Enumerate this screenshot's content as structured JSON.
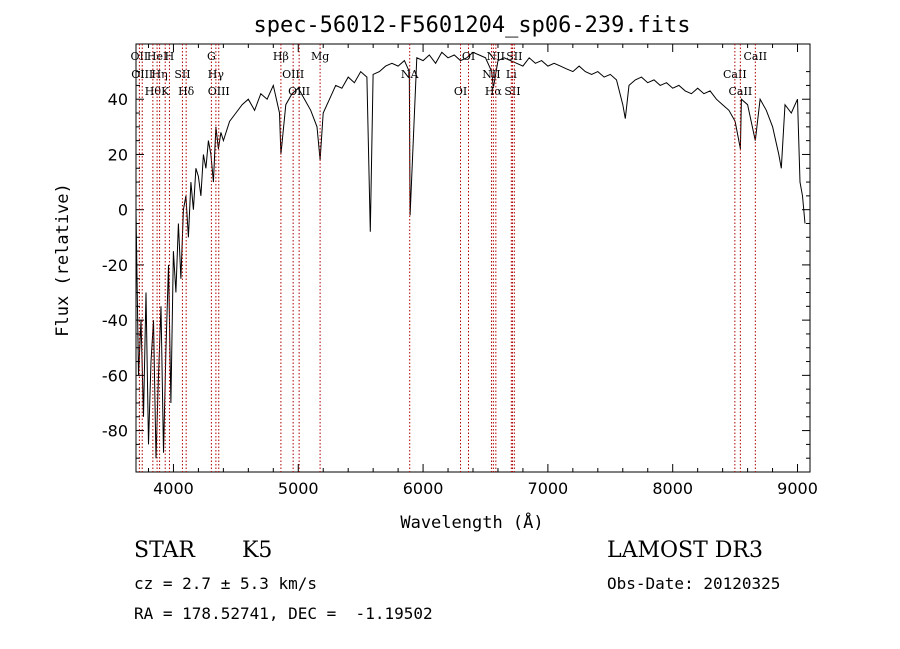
{
  "chart_data": {
    "type": "line",
    "title": "spec-56012-F5601204_sp06-239.fits",
    "xlabel": "Wavelength (Å)",
    "ylabel": "Flux (relative)",
    "xlim": [
      3700,
      9100
    ],
    "ylim": [
      -95,
      60
    ],
    "xticks": [
      4000,
      5000,
      6000,
      7000,
      8000,
      9000
    ],
    "yticks": [
      -80,
      -60,
      -40,
      -20,
      0,
      20,
      40
    ],
    "grid": false,
    "series": [
      {
        "color": "#000000",
        "x": [
          3700,
          3720,
          3740,
          3760,
          3780,
          3800,
          3820,
          3840,
          3860,
          3880,
          3900,
          3920,
          3940,
          3960,
          3980,
          4000,
          4020,
          4040,
          4060,
          4080,
          4100,
          4120,
          4140,
          4160,
          4180,
          4200,
          4220,
          4240,
          4260,
          4280,
          4300,
          4320,
          4340,
          4360,
          4380,
          4400,
          4450,
          4500,
          4550,
          4600,
          4650,
          4700,
          4750,
          4800,
          4850,
          4861,
          4900,
          4950,
          5000,
          5050,
          5100,
          5150,
          5175,
          5200,
          5250,
          5300,
          5350,
          5400,
          5450,
          5500,
          5550,
          5577,
          5600,
          5650,
          5700,
          5750,
          5800,
          5850,
          5890,
          5896,
          5950,
          6000,
          6050,
          6100,
          6150,
          6200,
          6250,
          6300,
          6350,
          6400,
          6450,
          6500,
          6550,
          6563,
          6600,
          6650,
          6700,
          6750,
          6800,
          6850,
          6900,
          6950,
          7000,
          7050,
          7100,
          7150,
          7200,
          7250,
          7300,
          7350,
          7400,
          7450,
          7500,
          7550,
          7600,
          7620,
          7650,
          7700,
          7750,
          7800,
          7850,
          7900,
          7950,
          8000,
          8050,
          8100,
          8150,
          8200,
          8250,
          8300,
          8350,
          8400,
          8450,
          8500,
          8542,
          8550,
          8600,
          8662,
          8700,
          8750,
          8800,
          8850,
          8870,
          8900,
          8950,
          9000,
          9020,
          9040,
          9060
        ],
        "y": [
          0,
          -60,
          -40,
          -75,
          -30,
          -85,
          -55,
          -40,
          -90,
          -60,
          -35,
          -88,
          -50,
          -20,
          -70,
          -15,
          -30,
          -5,
          -25,
          0,
          5,
          -10,
          10,
          0,
          15,
          12,
          5,
          20,
          15,
          25,
          20,
          10,
          30,
          22,
          28,
          25,
          32,
          35,
          38,
          40,
          36,
          42,
          40,
          45,
          35,
          20,
          38,
          42,
          44,
          40,
          36,
          30,
          18,
          35,
          40,
          45,
          44,
          48,
          46,
          50,
          48,
          -8,
          49,
          50,
          52,
          53,
          52,
          54,
          50,
          -2,
          55,
          54,
          56,
          53,
          57,
          55,
          56,
          54,
          55,
          57,
          56,
          55,
          50,
          44,
          54,
          55,
          54,
          53,
          52,
          55,
          53,
          54,
          52,
          53,
          52,
          51,
          50,
          52,
          50,
          49,
          50,
          48,
          49,
          47,
          38,
          33,
          45,
          47,
          48,
          46,
          47,
          45,
          46,
          44,
          45,
          43,
          42,
          44,
          42,
          43,
          40,
          38,
          36,
          32,
          22,
          40,
          38,
          25,
          40,
          36,
          30,
          20,
          15,
          38,
          35,
          40,
          10,
          5,
          -5
        ]
      }
    ],
    "line_markers": [
      {
        "wavelength": 3727,
        "label": "OII"
      },
      {
        "wavelength": 3750,
        "label": "OIII"
      },
      {
        "wavelength": 3835,
        "label": "Hθ"
      },
      {
        "wavelength": 3869,
        "label": "HeI"
      },
      {
        "wavelength": 3889,
        "label": "Hη"
      },
      {
        "wavelength": 3934,
        "label": "K"
      },
      {
        "wavelength": 3968,
        "label": "H"
      },
      {
        "wavelength": 4072,
        "label": "SII"
      },
      {
        "wavelength": 4102,
        "label": "Hδ"
      },
      {
        "wavelength": 4304,
        "label": "G"
      },
      {
        "wavelength": 4340,
        "label": "Hγ"
      },
      {
        "wavelength": 4363,
        "label": "OIII"
      },
      {
        "wavelength": 4861,
        "label": "Hβ"
      },
      {
        "wavelength": 4959,
        "label": "OIII"
      },
      {
        "wavelength": 5007,
        "label": "OIII"
      },
      {
        "wavelength": 5175,
        "label": "Mg"
      },
      {
        "wavelength": 5893,
        "label": "NA"
      },
      {
        "wavelength": 6300,
        "label": "OI"
      },
      {
        "wavelength": 6364,
        "label": "OI"
      },
      {
        "wavelength": 6548,
        "label": "NII"
      },
      {
        "wavelength": 6563,
        "label": "Hα"
      },
      {
        "wavelength": 6583,
        "label": "NII"
      },
      {
        "wavelength": 6707,
        "label": "Li"
      },
      {
        "wavelength": 6716,
        "label": "SII"
      },
      {
        "wavelength": 6731,
        "label": "SII"
      },
      {
        "wavelength": 8498,
        "label": "CaII"
      },
      {
        "wavelength": 8542,
        "label": "CaII"
      },
      {
        "wavelength": 8662,
        "label": "CaII"
      }
    ]
  },
  "info": {
    "object_class": "STAR",
    "subclass": "K5",
    "survey": "LAMOST DR3",
    "cz": "cz = 2.7 ± 5.3 km/s",
    "obs_date": "Obs-Date: 20120325",
    "radec": "RA = 178.52741, DEC =  -1.19502"
  }
}
